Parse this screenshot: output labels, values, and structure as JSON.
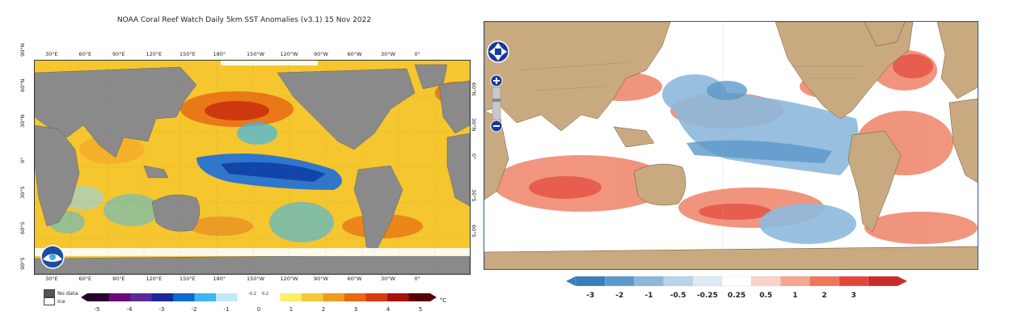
{
  "left_panel": {
    "title": "NOAA Coral Reef Watch Daily 5km SST Anomalies  (v3.1)  15 Nov 2022",
    "lon_labels": [
      "30°E",
      "60°E",
      "90°E",
      "120°E",
      "150°E",
      "180°",
      "150°W",
      "120°W",
      "90°W",
      "60°W",
      "30°W",
      "0°"
    ],
    "lat_labels_left": [
      "90°N",
      "60°N",
      "30°N",
      "0°",
      "30°S",
      "60°S",
      "90°S"
    ],
    "lat_labels_right": [
      "60°N",
      "30°N",
      "0°",
      "30°S",
      "60°S"
    ],
    "legend_keys": [
      {
        "label": "No data",
        "color": "#555555"
      },
      {
        "label": "Ice",
        "color": "#ffffff"
      }
    ],
    "colorbar": {
      "ticks": [
        "-5",
        "-4",
        "-3",
        "-2",
        "-1",
        "0",
        "1",
        "2",
        "3",
        "4",
        "5"
      ],
      "minor_ticks": [
        "-0.2",
        "0.2"
      ],
      "unit": "°C",
      "colors": [
        "#2a0030",
        "#6a0a78",
        "#5a2a9a",
        "#1a2a9a",
        "#0a6ad0",
        "#3ab8ef",
        "#bfe9f7",
        "#ffffff",
        "#ffffff",
        "#f9ef6a",
        "#f5c93a",
        "#f09a22",
        "#e86a12",
        "#d83a12",
        "#a8120a",
        "#5a0000"
      ]
    },
    "logo_name": "noaa-logo"
  },
  "right_panel": {
    "nav_controls": [
      "pan-up",
      "pan-left",
      "pan-right",
      "pan-down",
      "zoom-in",
      "zoom-out"
    ],
    "colorbar": {
      "ticks": [
        "-3",
        "-2",
        "-1",
        "-0.5",
        "-0.25",
        "0.25",
        "0.5",
        "1",
        "2",
        "3"
      ],
      "colors": [
        "#3b7db8",
        "#5b98c9",
        "#8bb7d9",
        "#b9d3e8",
        "#dfeaf4",
        "#ffffff",
        "#fbd3c6",
        "#f5a68f",
        "#ee7659",
        "#e3473a",
        "#cc2a2a"
      ]
    }
  },
  "colors": {
    "land_left": "#8a8a8a",
    "land_right": "#c9aa80",
    "ocean_warm": "#f6c62e",
    "ocean_cool": "#1e6fd9",
    "ocean_hot": "#d83a12",
    "right_warm": "#ef8268",
    "right_cool": "#8db9dd",
    "right_frame": "#2a5a9a"
  }
}
